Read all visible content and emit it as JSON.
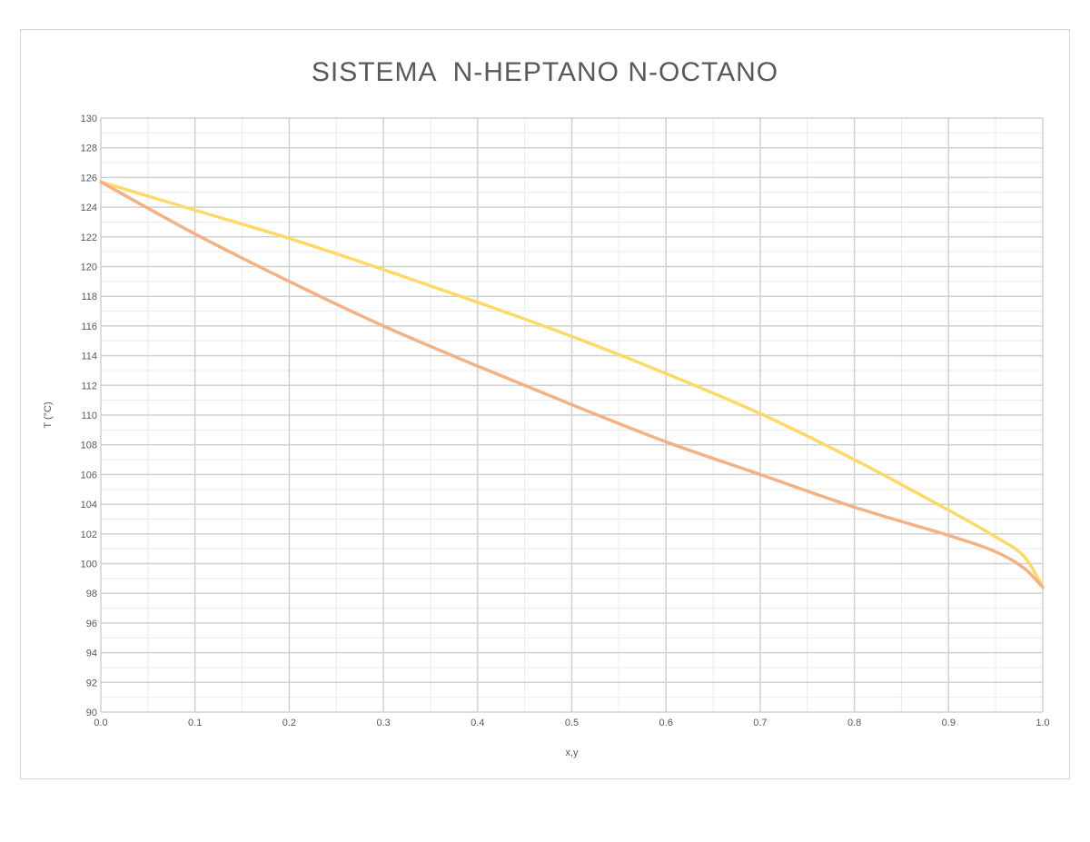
{
  "chart_data": {
    "type": "line",
    "title": "SISTEMA  N-HEPTANO N-OCTANO",
    "xlabel": "x,y",
    "ylabel": "T (°C)",
    "xlim": [
      0,
      1
    ],
    "ylim": [
      90,
      130
    ],
    "x_ticks": [
      "0.0",
      "0.1",
      "0.2",
      "0.3",
      "0.4",
      "0.5",
      "0.6",
      "0.7",
      "0.8",
      "0.9",
      "1.0"
    ],
    "y_ticks": [
      "90",
      "92",
      "94",
      "96",
      "98",
      "100",
      "102",
      "104",
      "106",
      "108",
      "110",
      "112",
      "114",
      "116",
      "118",
      "120",
      "122",
      "124",
      "126",
      "128",
      "130"
    ],
    "grid": true,
    "legend": "none",
    "series": [
      {
        "color": "#ffd966",
        "x": [
          0.0,
          0.1,
          0.2,
          0.3,
          0.4,
          0.5,
          0.6,
          0.7,
          0.8,
          0.9,
          0.95,
          0.98,
          1.0
        ],
        "y": [
          125.7,
          123.8,
          121.9,
          119.8,
          117.6,
          115.3,
          112.8,
          110.1,
          107.0,
          103.6,
          101.8,
          100.5,
          98.4
        ]
      },
      {
        "color": "#f4b183",
        "x": [
          0.0,
          0.1,
          0.2,
          0.3,
          0.4,
          0.5,
          0.6,
          0.7,
          0.8,
          0.9,
          0.95,
          0.98,
          1.0
        ],
        "y": [
          125.7,
          122.2,
          119.0,
          116.0,
          113.3,
          110.7,
          108.2,
          106.0,
          103.8,
          101.9,
          100.8,
          99.7,
          98.4
        ]
      }
    ]
  }
}
